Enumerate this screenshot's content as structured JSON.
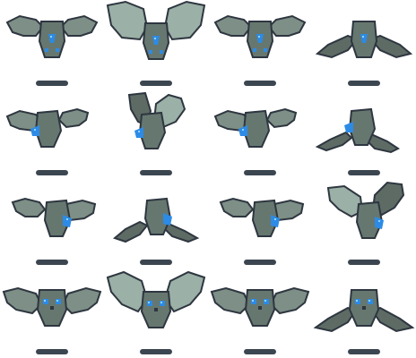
{
  "sprite_sheet": {
    "columns": 4,
    "rows": 4,
    "colors": {
      "wing_dark": "#5d6b64",
      "wing_mid": "#7d8f86",
      "wing_light": "#9bb0a6",
      "body": "#667770",
      "outline": "#2e3640",
      "eye_blue": "#2c8be6",
      "eye_highlight": "#8fd3ff",
      "shadow": "#3b4650"
    },
    "frames": [
      {
        "row": 1,
        "col": 1,
        "pose": "wings-spread"
      },
      {
        "row": 1,
        "col": 2,
        "pose": "wings-raised"
      },
      {
        "row": 1,
        "col": 3,
        "pose": "wings-spread"
      },
      {
        "row": 1,
        "col": 4,
        "pose": "wings-down"
      },
      {
        "row": 2,
        "col": 1,
        "pose": "bank-left"
      },
      {
        "row": 2,
        "col": 2,
        "pose": "wings-up-left"
      },
      {
        "row": 2,
        "col": 3,
        "pose": "bank-left"
      },
      {
        "row": 2,
        "col": 4,
        "pose": "wings-down-left"
      },
      {
        "row": 3,
        "col": 1,
        "pose": "bank-right"
      },
      {
        "row": 3,
        "col": 2,
        "pose": "wings-down-right"
      },
      {
        "row": 3,
        "col": 3,
        "pose": "bank-right"
      },
      {
        "row": 3,
        "col": 4,
        "pose": "wings-up-right"
      },
      {
        "row": 4,
        "col": 1,
        "pose": "front-spread"
      },
      {
        "row": 4,
        "col": 2,
        "pose": "front-raised"
      },
      {
        "row": 4,
        "col": 3,
        "pose": "front-spread"
      },
      {
        "row": 4,
        "col": 4,
        "pose": "front-down"
      }
    ]
  }
}
